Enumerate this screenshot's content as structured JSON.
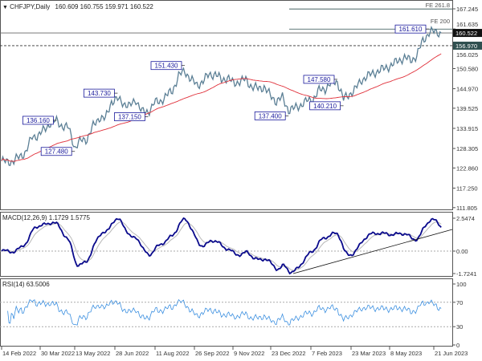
{
  "header": {
    "symbol": "CHFJPY,Daily",
    "ohlc": "160.609 160.755 159.971 160.522",
    "collapse_icon": "triangle-down-icon"
  },
  "colors": {
    "price": "#5b7f95",
    "moving_average": "#e0303a",
    "macd": "#0a0a8c",
    "signal": "#b8b8b8",
    "rsi": "#3b8fe0",
    "label_border": "#1a1a9c",
    "current_price_bg": "#111111",
    "level_bg": "#2f4f4f"
  },
  "price_axis": {
    "ticks": [
      "167.245",
      "161.635",
      "156.025",
      "150.580",
      "144.970",
      "139.525",
      "133.915",
      "128.305",
      "122.860",
      "117.250",
      "111.805"
    ],
    "current_price": "160.522",
    "level_price": "156.970"
  },
  "fibonacci": [
    {
      "label": "FE 261.8",
      "price": 167.2
    },
    {
      "label": "FE 200",
      "price": 161.6
    }
  ],
  "annotations": [
    {
      "label": "136.160",
      "date_index": 9
    },
    {
      "label": "127.480",
      "date_index": 12
    },
    {
      "label": "143.730",
      "date_index": 19
    },
    {
      "label": "137.150",
      "date_index": 24
    },
    {
      "label": "151.430",
      "date_index": 30
    },
    {
      "label": "137.400",
      "date_index": 47
    },
    {
      "label": "147.580",
      "date_index": 55
    },
    {
      "label": "140.210",
      "date_index": 56
    },
    {
      "label": "161.610",
      "date_index": 70
    }
  ],
  "macd": {
    "label": "MACD(12,26,9) 1.1729 1.5775",
    "ticks": [
      "2.5474",
      "0.00",
      "-1.7241"
    ]
  },
  "rsi": {
    "label": "RSI(14) 63.5006",
    "ticks": [
      "100",
      "70",
      "30",
      "0"
    ]
  },
  "date_axis": [
    "14 Feb 2022",
    "30 Mar 2022",
    "13 May 2022",
    "28 Jun 2022",
    "11 Aug 2022",
    "26 Sep 2022",
    "9 Nov 2022",
    "23 Dec 2022",
    "7 Feb 2023",
    "23 Mar 2023",
    "8 May 2023",
    "21 Jun 2023"
  ],
  "chart_data": {
    "type": "line",
    "title": "CHFJPY,Daily",
    "x_start": "14 Feb 2022",
    "x_step": "weekly",
    "ylim": [
      111.805,
      167.245
    ],
    "grid": false,
    "closes": [
      124.8,
      124.5,
      124.9,
      126.0,
      127.5,
      131.5,
      132.0,
      133.5,
      135.5,
      136.0,
      134.5,
      134.0,
      128.5,
      130.5,
      131.0,
      134.5,
      137.0,
      136.5,
      141.5,
      142.0,
      141.0,
      140.0,
      142.0,
      138.5,
      138.5,
      141.0,
      141.5,
      143.0,
      144.5,
      148.5,
      150.0,
      147.5,
      146.0,
      147.0,
      149.0,
      149.0,
      147.5,
      148.0,
      146.5,
      147.0,
      147.5,
      145.5,
      145.0,
      145.5,
      143.0,
      141.5,
      142.5,
      139.0,
      139.5,
      140.5,
      141.5,
      142.0,
      144.5,
      145.0,
      146.5,
      147.0,
      142.0,
      143.5,
      145.0,
      147.5,
      148.5,
      149.5,
      150.0,
      151.0,
      151.5,
      153.0,
      153.5,
      153.0,
      154.0,
      158.5,
      160.5,
      161.0,
      160.522
    ]
  }
}
